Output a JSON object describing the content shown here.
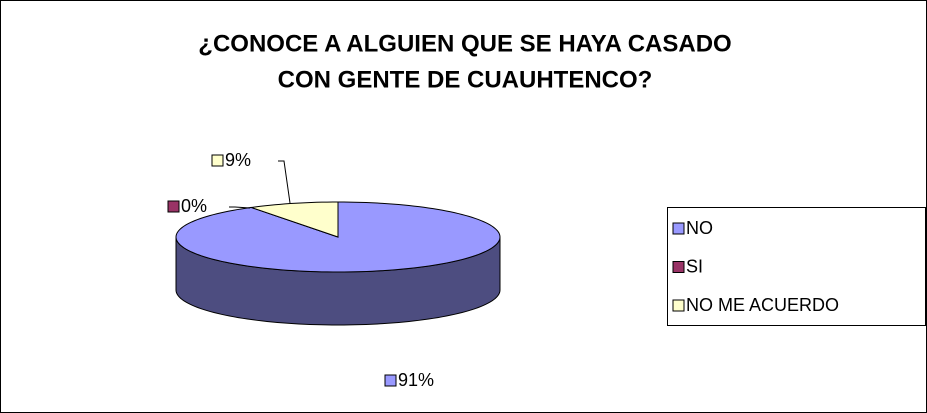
{
  "chart_data": {
    "type": "pie3d",
    "title": [
      "¿CONOCE A ALGUIEN QUE SE HAYA CASADO",
      "CON GENTE DE CUAUHTENCO?"
    ],
    "categories": [
      "NO",
      "SI",
      "NO ME ACUERDO"
    ],
    "values": [
      91,
      0,
      9
    ],
    "value_labels": [
      "91%",
      "0%",
      "9%"
    ],
    "colors": [
      "#9999ff",
      "#993366",
      "#ffffcc"
    ],
    "legend": "right"
  }
}
